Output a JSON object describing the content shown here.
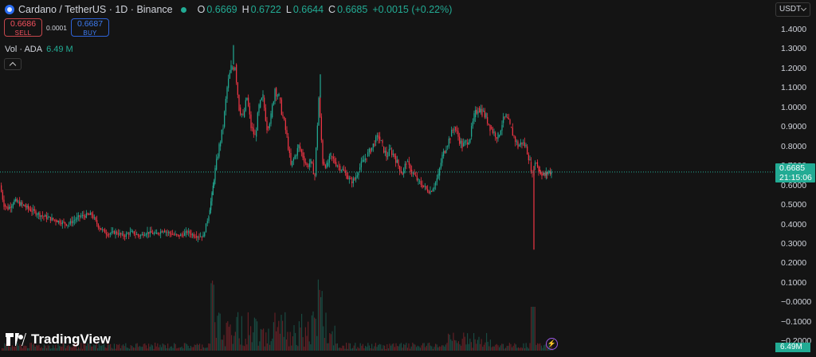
{
  "header": {
    "title": "Cardano / TetherUS · 1D · Binance",
    "open_label": "O",
    "open": "0.6669",
    "high_label": "H",
    "high": "0.6722",
    "low_label": "L",
    "low": "0.6644",
    "close_label": "C",
    "close": "0.6685",
    "change": "+0.0015 (+0.22%)"
  },
  "trade": {
    "sell_price": "0.6686",
    "sell_label": "SELL",
    "spread": "0.0001",
    "buy_price": "0.6687",
    "buy_label": "BUY"
  },
  "volume_legend": {
    "label": "Vol · ADA",
    "value": "6.49 M"
  },
  "currency": "USDT",
  "price_axis": [
    "1.4000",
    "1.3000",
    "1.2000",
    "1.1000",
    "1.0000",
    "0.9000",
    "0.8000",
    "0.7000",
    "0.6000",
    "0.5000",
    "0.4000",
    "0.3000",
    "0.2000",
    "0.1000",
    "−0.0000",
    "−0.1000",
    "−0.2000"
  ],
  "last_price": {
    "price": "0.6685",
    "countdown": "21:15:06"
  },
  "volume_tag": "6.49M",
  "branding": "TradingView",
  "colors": {
    "up": "#22ab94",
    "down": "#f23645",
    "background": "#141414"
  },
  "chart_data": {
    "type": "candlestick",
    "symbol": "ADA/USDT",
    "interval": "1D",
    "ylim": [
      -0.2,
      1.4
    ],
    "last_price": 0.6685,
    "x": [
      0,
      5,
      10,
      18,
      28,
      40,
      55,
      70,
      85,
      100,
      115,
      125,
      135,
      145,
      155,
      165,
      175,
      185,
      195,
      205,
      215,
      225,
      235,
      245,
      255,
      262,
      266,
      270,
      275,
      280,
      285,
      290,
      295,
      300,
      305,
      310,
      315,
      320,
      325,
      330,
      335,
      340,
      345,
      350,
      355,
      360,
      365,
      370,
      375,
      380,
      385,
      390,
      395,
      400,
      405,
      410,
      415,
      420,
      425,
      430,
      435,
      440,
      445,
      450,
      455,
      460,
      465,
      470,
      475,
      480,
      485,
      490,
      495,
      500,
      505,
      510,
      515,
      520,
      525,
      530,
      535,
      540,
      545,
      550,
      555,
      560,
      565,
      570,
      575,
      580,
      585,
      590,
      595,
      600,
      605,
      610,
      615,
      620,
      625,
      630,
      635,
      640,
      645,
      650,
      655,
      660,
      665,
      668,
      670,
      673,
      676,
      680,
      684,
      688,
      692
    ],
    "close": [
      0.6,
      0.5,
      0.48,
      0.52,
      0.5,
      0.47,
      0.44,
      0.42,
      0.4,
      0.44,
      0.45,
      0.38,
      0.35,
      0.36,
      0.34,
      0.36,
      0.34,
      0.36,
      0.35,
      0.37,
      0.35,
      0.34,
      0.36,
      0.34,
      0.34,
      0.45,
      0.55,
      0.68,
      0.8,
      0.9,
      1.1,
      1.2,
      1.22,
      1.0,
      0.95,
      1.05,
      0.9,
      0.85,
      1.0,
      1.05,
      0.9,
      0.95,
      1.1,
      1.05,
      0.95,
      0.85,
      0.7,
      0.75,
      0.8,
      0.75,
      0.7,
      0.72,
      0.65,
      1.05,
      0.72,
      0.7,
      0.75,
      0.72,
      0.7,
      0.68,
      0.65,
      0.62,
      0.63,
      0.68,
      0.72,
      0.75,
      0.78,
      0.82,
      0.85,
      0.8,
      0.75,
      0.78,
      0.75,
      0.7,
      0.66,
      0.72,
      0.68,
      0.65,
      0.62,
      0.6,
      0.58,
      0.57,
      0.6,
      0.65,
      0.75,
      0.8,
      0.85,
      0.9,
      0.85,
      0.8,
      0.82,
      0.85,
      0.95,
      1.0,
      0.98,
      0.95,
      0.9,
      0.87,
      0.85,
      0.92,
      0.95,
      0.9,
      0.85,
      0.8,
      0.82,
      0.8,
      0.72,
      0.65,
      0.7,
      0.72,
      0.68,
      0.66,
      0.65,
      0.67,
      0.6685
    ],
    "high_extremes": [
      {
        "x": 293,
        "y": 1.32
      },
      {
        "x": 402,
        "y": 1.17
      }
    ],
    "low_extremes": [
      {
        "x": 670,
        "y": 0.27
      }
    ],
    "volume_note": "volume histogram at bottom; last bar 6.49M"
  }
}
